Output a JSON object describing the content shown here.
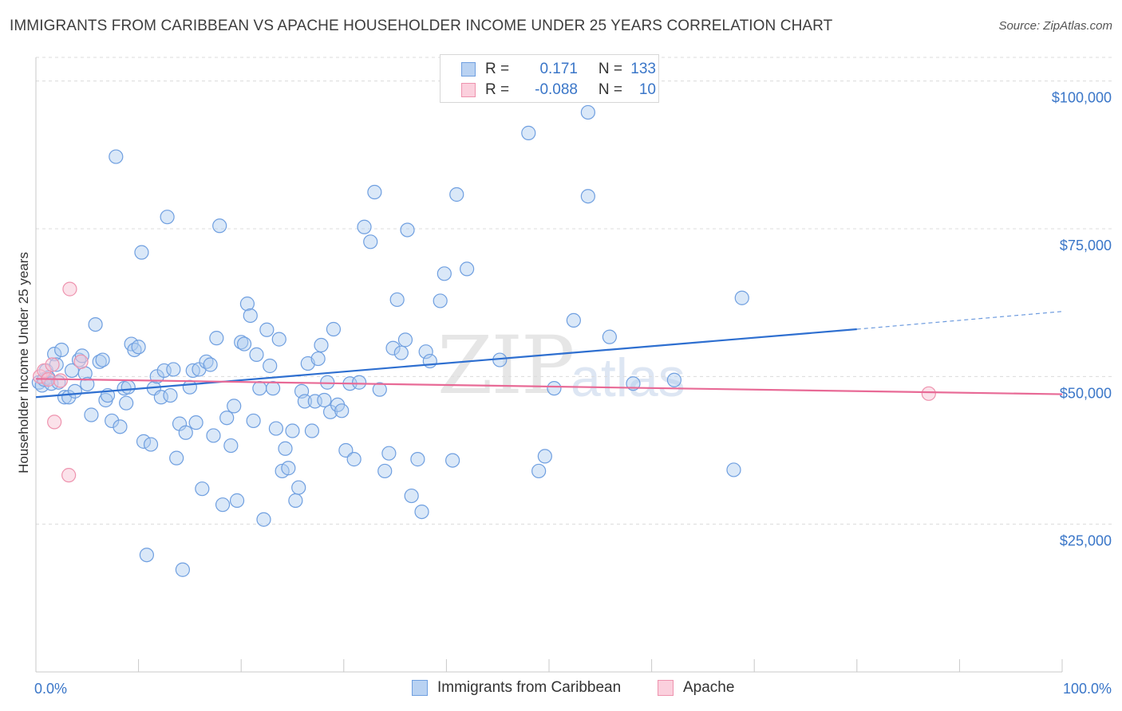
{
  "title": "IMMIGRANTS FROM CARIBBEAN VS APACHE HOUSEHOLDER INCOME UNDER 25 YEARS CORRELATION CHART",
  "source": "Source: ZipAtlas.com",
  "watermark": {
    "zip": "ZIP",
    "atlas": "atlas"
  },
  "legend_top": [
    {
      "r_label": "R =",
      "r_value": "0.171",
      "n_label": "N =",
      "n_value": "133"
    },
    {
      "r_label": "R =",
      "r_value": "-0.088",
      "n_label": "N =",
      "n_value": "10"
    }
  ],
  "legend_bottom": [
    "Immigrants from Caribbean",
    "Apache"
  ],
  "colors": {
    "caribbean_fill": "#aecbf0",
    "caribbean_stroke": "#6f9fe0",
    "caribbean_line": "#2e6fd0",
    "apache_fill": "#f8c6d5",
    "apache_stroke": "#ee93ae",
    "apache_line": "#e86a96",
    "tick_text": "#3a76c8",
    "grid": "#dcdcdc"
  },
  "chart_data": {
    "type": "scatter",
    "title": "IMMIGRANTS FROM CARIBBEAN VS APACHE HOUSEHOLDER INCOME UNDER 25 YEARS CORRELATION CHART",
    "xlabel": "",
    "ylabel": "Householder Income Under 25 years",
    "xlim": [
      0,
      100
    ],
    "ylim": [
      0,
      104000
    ],
    "x_tick_labels": [
      "0.0%",
      "100.0%"
    ],
    "y_ticks": [
      25000,
      50000,
      75000,
      100000
    ],
    "y_tick_labels": [
      "$25,000",
      "$50,000",
      "$75,000",
      "$100,000"
    ],
    "grid": "horizontal dashed",
    "legend_placement": "top-center and bottom",
    "series": [
      {
        "name": "Immigrants from Caribbean",
        "r": 0.171,
        "n": 133,
        "trend": {
          "x0": 0,
          "y0": 46500,
          "x1": 80,
          "y1": 58000,
          "dashed_to_x": 100,
          "dashed_y": 61000
        },
        "points": [
          [
            0.3,
            49000
          ],
          [
            0.6,
            48500
          ],
          [
            0.8,
            49500
          ],
          [
            1.0,
            51000
          ],
          [
            1.2,
            49800
          ],
          [
            1.5,
            48800
          ],
          [
            1.8,
            53800
          ],
          [
            2.0,
            52000
          ],
          [
            2.2,
            49000
          ],
          [
            2.5,
            54500
          ],
          [
            2.8,
            46500
          ],
          [
            3.2,
            46500
          ],
          [
            3.5,
            51000
          ],
          [
            3.8,
            47500
          ],
          [
            4.2,
            52800
          ],
          [
            4.5,
            53500
          ],
          [
            4.8,
            50500
          ],
          [
            5.0,
            48700
          ],
          [
            5.4,
            43500
          ],
          [
            5.8,
            58800
          ],
          [
            6.2,
            52500
          ],
          [
            6.5,
            52800
          ],
          [
            6.8,
            46000
          ],
          [
            7.0,
            46800
          ],
          [
            7.4,
            42500
          ],
          [
            7.8,
            87200
          ],
          [
            8.2,
            41500
          ],
          [
            8.6,
            48000
          ],
          [
            8.8,
            45500
          ],
          [
            9.0,
            48200
          ],
          [
            9.3,
            55500
          ],
          [
            9.6,
            54500
          ],
          [
            10.0,
            55000
          ],
          [
            10.3,
            71000
          ],
          [
            10.5,
            39000
          ],
          [
            10.8,
            19800
          ],
          [
            11.2,
            38500
          ],
          [
            11.5,
            48000
          ],
          [
            11.8,
            50000
          ],
          [
            12.2,
            46500
          ],
          [
            12.5,
            51000
          ],
          [
            12.8,
            77000
          ],
          [
            13.1,
            46800
          ],
          [
            13.4,
            51200
          ],
          [
            13.7,
            36200
          ],
          [
            14.0,
            42000
          ],
          [
            14.3,
            17300
          ],
          [
            14.6,
            40500
          ],
          [
            15.0,
            48200
          ],
          [
            15.3,
            51000
          ],
          [
            15.6,
            42200
          ],
          [
            15.9,
            51200
          ],
          [
            16.2,
            31000
          ],
          [
            16.6,
            52500
          ],
          [
            17.0,
            52000
          ],
          [
            17.3,
            40000
          ],
          [
            17.6,
            56500
          ],
          [
            17.9,
            75500
          ],
          [
            18.2,
            28300
          ],
          [
            18.6,
            43000
          ],
          [
            19.0,
            38300
          ],
          [
            19.3,
            45000
          ],
          [
            19.6,
            29000
          ],
          [
            20.0,
            55800
          ],
          [
            20.3,
            55500
          ],
          [
            20.6,
            62300
          ],
          [
            20.9,
            60300
          ],
          [
            21.2,
            42500
          ],
          [
            21.5,
            53700
          ],
          [
            21.8,
            48000
          ],
          [
            22.2,
            25800
          ],
          [
            22.5,
            57900
          ],
          [
            22.8,
            51800
          ],
          [
            23.1,
            48000
          ],
          [
            23.4,
            41200
          ],
          [
            23.7,
            56300
          ],
          [
            24.0,
            34000
          ],
          [
            24.3,
            37800
          ],
          [
            24.6,
            34500
          ],
          [
            25.0,
            40800
          ],
          [
            25.3,
            29000
          ],
          [
            25.6,
            31200
          ],
          [
            25.9,
            47500
          ],
          [
            26.2,
            45800
          ],
          [
            26.5,
            52200
          ],
          [
            26.9,
            40800
          ],
          [
            27.2,
            45800
          ],
          [
            27.5,
            53000
          ],
          [
            27.8,
            55300
          ],
          [
            28.1,
            46000
          ],
          [
            28.4,
            49000
          ],
          [
            28.7,
            44000
          ],
          [
            29.0,
            58000
          ],
          [
            29.4,
            45200
          ],
          [
            29.8,
            44200
          ],
          [
            30.2,
            37500
          ],
          [
            30.6,
            48800
          ],
          [
            31.0,
            36000
          ],
          [
            31.5,
            49000
          ],
          [
            32.0,
            75300
          ],
          [
            32.6,
            72800
          ],
          [
            33.0,
            81200
          ],
          [
            33.5,
            47800
          ],
          [
            34.0,
            34000
          ],
          [
            34.4,
            37000
          ],
          [
            34.8,
            54800
          ],
          [
            35.2,
            63000
          ],
          [
            35.6,
            54000
          ],
          [
            36.0,
            56200
          ],
          [
            36.2,
            74800
          ],
          [
            36.6,
            29800
          ],
          [
            37.2,
            36000
          ],
          [
            37.6,
            27100
          ],
          [
            38.0,
            54200
          ],
          [
            38.4,
            52600
          ],
          [
            39.4,
            62800
          ],
          [
            39.8,
            67400
          ],
          [
            40.6,
            35800
          ],
          [
            41.0,
            80800
          ],
          [
            42.0,
            68200
          ],
          [
            45.2,
            52800
          ],
          [
            48.0,
            91200
          ],
          [
            49.0,
            34000
          ],
          [
            49.6,
            36500
          ],
          [
            50.5,
            48000
          ],
          [
            52.4,
            59500
          ],
          [
            53.8,
            94700
          ],
          [
            53.8,
            80500
          ],
          [
            55.9,
            56700
          ],
          [
            58.2,
            48800
          ],
          [
            62.2,
            49400
          ],
          [
            68.0,
            34200
          ],
          [
            68.8,
            63300
          ]
        ]
      },
      {
        "name": "Apache",
        "r": -0.088,
        "n": 10,
        "trend": {
          "x0": 0,
          "y0": 49600,
          "x1": 100,
          "y1": 47000
        },
        "points": [
          [
            0.4,
            50000
          ],
          [
            0.8,
            51000
          ],
          [
            1.2,
            49500
          ],
          [
            1.6,
            52000
          ],
          [
            1.8,
            42300
          ],
          [
            2.4,
            49300
          ],
          [
            3.2,
            33300
          ],
          [
            3.3,
            64800
          ],
          [
            4.4,
            52500
          ],
          [
            87.0,
            47100
          ]
        ]
      }
    ]
  }
}
